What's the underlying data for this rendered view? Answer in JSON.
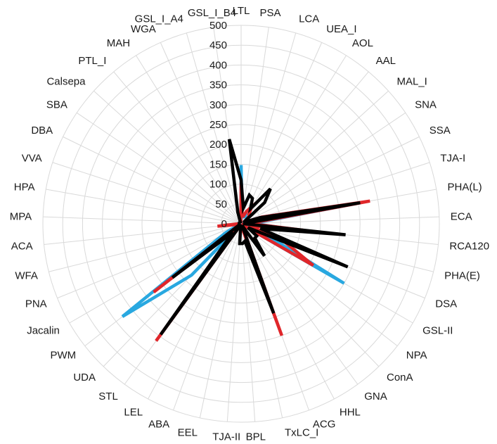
{
  "chart_data": {
    "type": "radar",
    "title": "",
    "categories": [
      "LTL",
      "PSA",
      "LCA",
      "UEA_I",
      "AOL",
      "AAL",
      "MAL_I",
      "SNA",
      "SSA",
      "TJA-I",
      "PHA(L)",
      "ECA",
      "RCA120",
      "PHA(E)",
      "DSA",
      "GSL-II",
      "NPA",
      "ConA",
      "GNA",
      "HHL",
      "ACG",
      "TxLC_I",
      "BPL",
      "TJA-II",
      "EEL",
      "ABA",
      "LEL",
      "STL",
      "UDA",
      "PWM",
      "Jacalin",
      "PNA",
      "WFA",
      "ACA",
      "MPA",
      "HPA",
      "VVA",
      "DBA",
      "SBA",
      "Calsepa",
      "PTL_I",
      "MAH",
      "WGA",
      "GSL_I_A4",
      "GSL_I_B4"
    ],
    "r_ticks": [
      0,
      50,
      100,
      150,
      200,
      250,
      300,
      350,
      400,
      450,
      500
    ],
    "r_range": [
      0,
      500
    ],
    "grid": true,
    "legend": "none",
    "series": [
      {
        "color": "#29a8e0",
        "values": [
          148,
          18,
          18,
          30,
          20,
          20,
          20,
          12,
          10,
          55,
          300,
          30,
          120,
          15,
          55,
          300,
          5,
          5,
          5,
          20,
          5,
          10,
          20,
          5,
          5,
          5,
          5,
          5,
          180,
          380,
          45,
          5,
          5,
          5,
          10,
          5,
          5,
          5,
          5,
          5,
          5,
          5,
          5,
          5,
          5
        ]
      },
      {
        "color": "#e0262a",
        "values": [
          105,
          20,
          20,
          35,
          50,
          30,
          28,
          12,
          10,
          55,
          330,
          20,
          160,
          20,
          115,
          210,
          5,
          5,
          5,
          5,
          300,
          10,
          10,
          5,
          5,
          5,
          5,
          365,
          5,
          280,
          5,
          5,
          5,
          60,
          5,
          5,
          5,
          5,
          5,
          5,
          5,
          5,
          5,
          5,
          5
        ]
      },
      {
        "color": "#000000",
        "values": [
          110,
          40,
          75,
          70,
          45,
          115,
          80,
          10,
          10,
          50,
          305,
          5,
          265,
          50,
          290,
          20,
          50,
          50,
          100,
          5,
          240,
          45,
          50,
          50,
          5,
          5,
          5,
          345,
          30,
          220,
          5,
          5,
          5,
          5,
          5,
          5,
          5,
          5,
          5,
          5,
          5,
          5,
          5,
          30,
          215
        ]
      }
    ]
  }
}
